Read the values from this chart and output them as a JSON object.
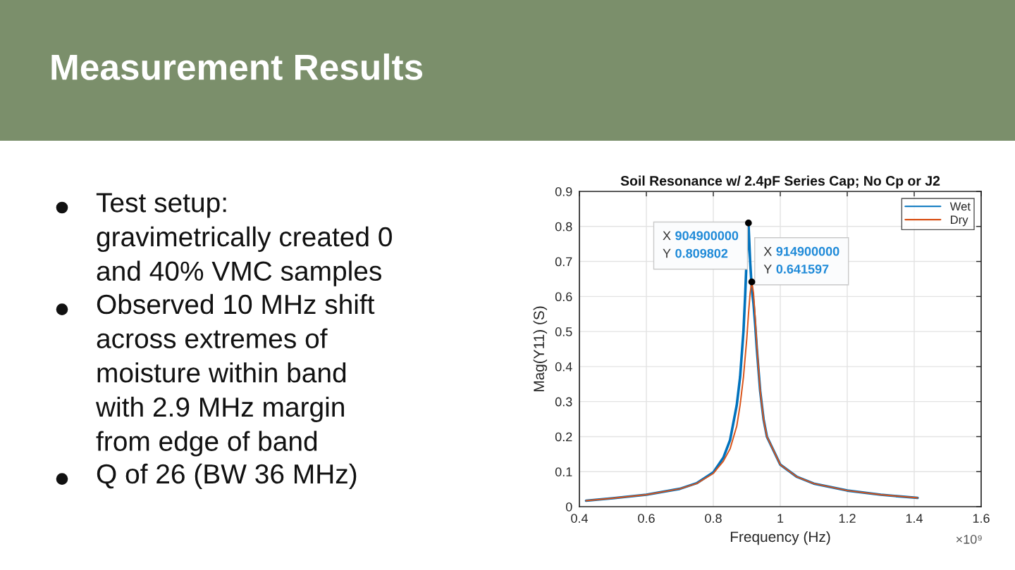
{
  "chart_data": {
    "type": "line",
    "title": "Measurement Results",
    "subtitle": "Soil Resonance w/ 2.4pF Series Cap; No Cp or J2",
    "xlabel": "Frequency (Hz)",
    "ylabel": "Mag(Y11) (S)",
    "series": [
      {
        "name": "Wet",
        "color": "#0072bd",
        "x": [
          0.42,
          0.5,
          0.6,
          0.7,
          0.75,
          0.8,
          0.83,
          0.85,
          0.87,
          0.88,
          0.89,
          0.895,
          0.9,
          0.9049,
          0.91,
          0.915,
          0.92,
          0.925,
          0.93,
          0.94,
          0.95,
          0.96,
          1.0,
          1.05,
          1.1,
          1.2,
          1.3,
          1.41
        ],
        "values": [
          0.017,
          0.024,
          0.034,
          0.051,
          0.067,
          0.098,
          0.14,
          0.19,
          0.29,
          0.37,
          0.5,
          0.6,
          0.72,
          0.809802,
          0.7,
          0.62,
          0.58,
          0.52,
          0.45,
          0.33,
          0.25,
          0.2,
          0.12,
          0.085,
          0.066,
          0.046,
          0.034,
          0.025
        ]
      },
      {
        "name": "Dry",
        "color": "#d95319",
        "x": [
          0.42,
          0.5,
          0.6,
          0.7,
          0.75,
          0.8,
          0.83,
          0.85,
          0.87,
          0.88,
          0.89,
          0.9,
          0.905,
          0.91,
          0.9149,
          0.92,
          0.925,
          0.93,
          0.94,
          0.95,
          0.96,
          1.0,
          1.05,
          1.1,
          1.2,
          1.3,
          1.41
        ],
        "values": [
          0.017,
          0.024,
          0.034,
          0.051,
          0.066,
          0.095,
          0.13,
          0.165,
          0.23,
          0.29,
          0.37,
          0.48,
          0.55,
          0.61,
          0.641597,
          0.61,
          0.54,
          0.46,
          0.33,
          0.25,
          0.2,
          0.12,
          0.085,
          0.066,
          0.046,
          0.034,
          0.025
        ]
      }
    ],
    "xlim": [
      0.4,
      1.6
    ],
    "xticks": [
      0.4,
      0.6,
      0.8,
      1,
      1.2,
      1.4,
      1.6
    ],
    "ylim": [
      0,
      0.9
    ],
    "yticks": [
      0,
      0.1,
      0.2,
      0.3,
      0.4,
      0.5,
      0.6,
      0.7,
      0.8,
      0.9
    ],
    "grid": true,
    "legend": "top right",
    "annotations": [
      "Test setup:\ngravimetrically created 0\nand 40% VMC samples",
      "Observed 10 MHz shift\nacross extremes of\nmoisture within band\nwith 2.9 MHz margin\nfrom edge of band",
      "Q of 26 (BW 36 MHz)",
      "×10⁹",
      {
        "text": "X 904900000\nY 0.809802",
        "x": 0.9049,
        "y": 0.809802
      },
      {
        "text": "X 914900000\nY 0.641597",
        "x": 0.9149,
        "y": 0.641597
      }
    ]
  }
}
